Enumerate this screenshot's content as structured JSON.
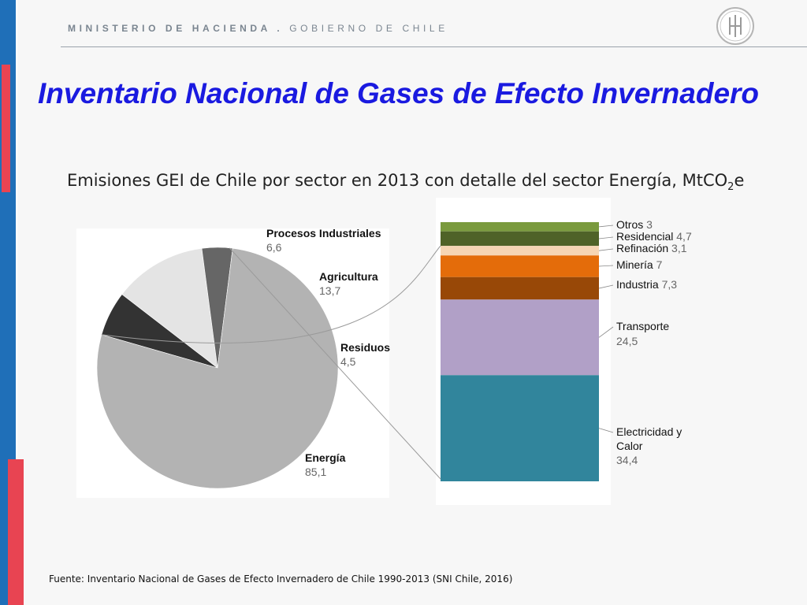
{
  "header": {
    "org_bold": "MINISTERIO DE HACIENDA .",
    "org_light": "GOBIERNO DE CHILE"
  },
  "slide": {
    "title": "Inventario Nacional de Gases de Efecto Invernadero",
    "subtitle_main": "Emisiones GEI de Chile por sector en 2013 con detalle del sector Energía, MtCO",
    "subtitle_sub": "2",
    "subtitle_end": "e",
    "source": "Fuente: Inventario Nacional de Gases de Efecto Invernadero de Chile 1990-2013 (SNI Chile, 2016)"
  },
  "colors": {
    "accent_blue": "#1f6fb8",
    "accent_red": "#e84452",
    "title": "#1a1ae0"
  },
  "chart_data": [
    {
      "type": "pie",
      "slices": [
        {
          "label": "Procesos Industriales",
          "value": 6.6,
          "display": "6,6",
          "color": "#333333"
        },
        {
          "label": "Agricultura",
          "value": 13.7,
          "display": "13,7",
          "color": "#e4e4e4"
        },
        {
          "label": "Residuos",
          "value": 4.5,
          "display": "4,5",
          "color": "#666666"
        },
        {
          "label": "Energía",
          "value": 85.1,
          "display": "85,1",
          "color": "#b3b3b3"
        }
      ]
    },
    {
      "type": "bar",
      "stacked": true,
      "segments": [
        {
          "label": "Otros",
          "value": 3,
          "display": "3",
          "color": "#7a9a3d"
        },
        {
          "label": "Residencial",
          "value": 4.7,
          "display": "4,7",
          "color": "#4f6228"
        },
        {
          "label": "Refinación",
          "value": 3.1,
          "display": "3,1",
          "color": "#f6d5b4"
        },
        {
          "label": "Minería",
          "value": 7,
          "display": "7",
          "color": "#e46c0a"
        },
        {
          "label": "Industria",
          "value": 7.3,
          "display": "7,3",
          "color": "#984807"
        },
        {
          "label": "Transporte",
          "value": 24.5,
          "display": "24,5",
          "color": "#b1a0c7"
        },
        {
          "label": "Electricidad y Calor",
          "value": 34.4,
          "display": "34,4",
          "color": "#31859c"
        }
      ]
    }
  ]
}
